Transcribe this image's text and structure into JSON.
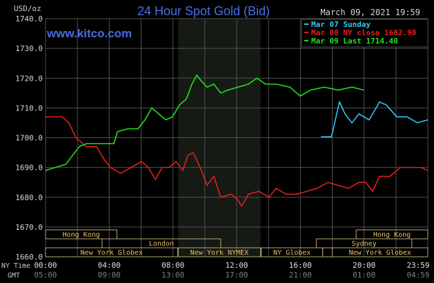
{
  "header": {
    "title": "24 Hour Spot Gold (Bid)",
    "site": "www.kitco.com",
    "datetime": "March 09, 2021 19:59",
    "unit": "USD/oz"
  },
  "colors": {
    "title": "#4a6ee0",
    "grid": "#505050",
    "session": "#b8a878",
    "session_text": "#e8c060",
    "shade": "#161a14",
    "cyan": "#30c8f0",
    "red": "#e02020",
    "green": "#20e020"
  },
  "chart_data": {
    "type": "line",
    "title": "24 Hour Spot Gold (Bid)",
    "ylabel": "USD/oz",
    "ylim": [
      1660,
      1740
    ],
    "xlim": [
      0,
      24
    ],
    "grid": true,
    "legend_position": "top-right",
    "y_ticks": [
      "1660.0",
      "1670.0",
      "1680.0",
      "1690.0",
      "1700.0",
      "1710.0",
      "1720.0",
      "1730.0",
      "1740.0"
    ],
    "x_tick_hours": [
      0,
      4,
      8,
      12,
      16,
      20,
      24
    ],
    "x_ticks_ny": [
      "00:00",
      "04:00",
      "08:00",
      "12:00",
      "16:00",
      "20:00",
      "23:59"
    ],
    "x_ticks_gmt": [
      "05:00",
      "09:00",
      "13:00",
      "17:00",
      "21:00",
      "01:00",
      "04:59"
    ],
    "x_row_labels": {
      "ny": "NY Time",
      "gmt": "GMT"
    },
    "shaded_hours": [
      8.33,
      13.5
    ],
    "series": [
      {
        "name": "Mar 07 Sunday",
        "color": "#30c8f0",
        "points": [
          [
            17.29,
            1700.3
          ],
          [
            17.94,
            1700.3
          ],
          [
            18.07,
            1703
          ],
          [
            18.28,
            1708
          ],
          [
            18.46,
            1712
          ],
          [
            18.8,
            1708
          ],
          [
            19.24,
            1705
          ],
          [
            19.67,
            1708
          ],
          [
            20.32,
            1706
          ],
          [
            20.97,
            1712
          ],
          [
            21.4,
            1711
          ],
          [
            22.05,
            1707
          ],
          [
            22.7,
            1707
          ],
          [
            23.35,
            1705
          ],
          [
            24,
            1706
          ]
        ]
      },
      {
        "name": "Mar 08 NY close 1682.90",
        "color": "#e02020",
        "points": [
          [
            0,
            1707
          ],
          [
            1.04,
            1707
          ],
          [
            1.47,
            1705
          ],
          [
            1.91,
            1700
          ],
          [
            2.56,
            1697
          ],
          [
            3.21,
            1697
          ],
          [
            3.64,
            1693
          ],
          [
            4.07,
            1690
          ],
          [
            4.72,
            1688
          ],
          [
            5.37,
            1690
          ],
          [
            6.02,
            1692
          ],
          [
            6.46,
            1690
          ],
          [
            6.89,
            1686
          ],
          [
            7.32,
            1690
          ],
          [
            7.76,
            1690
          ],
          [
            8.19,
            1692
          ],
          [
            8.62,
            1689
          ],
          [
            8.93,
            1694
          ],
          [
            9.27,
            1695
          ],
          [
            9.71,
            1690
          ],
          [
            10.14,
            1684
          ],
          [
            10.57,
            1687
          ],
          [
            11.0,
            1680
          ],
          [
            11.66,
            1681
          ],
          [
            12.09,
            1679
          ],
          [
            12.31,
            1677
          ],
          [
            12.74,
            1681
          ],
          [
            13.39,
            1682
          ],
          [
            14.04,
            1680
          ],
          [
            14.47,
            1683
          ],
          [
            15.12,
            1681
          ],
          [
            15.77,
            1681
          ],
          [
            16.42,
            1682
          ],
          [
            17.07,
            1683
          ],
          [
            17.72,
            1685
          ],
          [
            18.37,
            1684
          ],
          [
            19.02,
            1683
          ],
          [
            19.67,
            1685
          ],
          [
            20.1,
            1685
          ],
          [
            20.54,
            1682
          ],
          [
            20.97,
            1687
          ],
          [
            21.62,
            1687
          ],
          [
            22.27,
            1690
          ],
          [
            22.92,
            1690
          ],
          [
            23.57,
            1690
          ],
          [
            24,
            1689
          ]
        ]
      },
      {
        "name": "Mar 09 Last 1714.40",
        "color": "#20e020",
        "points": [
          [
            0,
            1689
          ],
          [
            0.61,
            1690
          ],
          [
            1.26,
            1691
          ],
          [
            1.69,
            1694
          ],
          [
            2.12,
            1697
          ],
          [
            2.56,
            1698
          ],
          [
            2.99,
            1698
          ],
          [
            3.64,
            1698
          ],
          [
            4.29,
            1698
          ],
          [
            4.51,
            1702
          ],
          [
            5.16,
            1703
          ],
          [
            5.81,
            1703
          ],
          [
            6.24,
            1706
          ],
          [
            6.67,
            1710
          ],
          [
            7.11,
            1708
          ],
          [
            7.54,
            1706
          ],
          [
            7.97,
            1707
          ],
          [
            8.41,
            1711
          ],
          [
            8.84,
            1713
          ],
          [
            9.19,
            1718
          ],
          [
            9.49,
            1721
          ],
          [
            9.79,
            1719
          ],
          [
            10.14,
            1717
          ],
          [
            10.57,
            1718
          ],
          [
            11.0,
            1715
          ],
          [
            11.44,
            1716
          ],
          [
            12.09,
            1717
          ],
          [
            12.74,
            1718
          ],
          [
            13.26,
            1720
          ],
          [
            13.82,
            1718
          ],
          [
            14.47,
            1718
          ],
          [
            15.34,
            1717
          ],
          [
            15.99,
            1714
          ],
          [
            16.64,
            1716
          ],
          [
            17.5,
            1717
          ],
          [
            18.37,
            1716
          ],
          [
            19.24,
            1717
          ],
          [
            19.97,
            1716
          ]
        ]
      }
    ],
    "sessions": [
      {
        "label": "Hong Kong",
        "row": 0,
        "start": 0,
        "end": 4.48
      },
      {
        "label": "Hong Kong",
        "row": 0,
        "start": 19.5,
        "end": 24
      },
      {
        "label": "London",
        "row": 1,
        "start": 3.55,
        "end": 11
      },
      {
        "label": "Sydney",
        "row": 1,
        "start": 17,
        "end": 23
      },
      {
        "label": "New York Globex",
        "row": 2,
        "start": 0,
        "end": 8.3
      },
      {
        "label": "New York NYMEX",
        "row": 2,
        "start": 8.33,
        "end": 13.5
      },
      {
        "label": "NY Globex",
        "row": 2,
        "start": 13.55,
        "end": 17.4
      },
      {
        "label": "",
        "row": 2,
        "start": 17.4,
        "end": 18
      },
      {
        "label": "New York Globex",
        "row": 2,
        "start": 18,
        "end": 24
      }
    ]
  }
}
